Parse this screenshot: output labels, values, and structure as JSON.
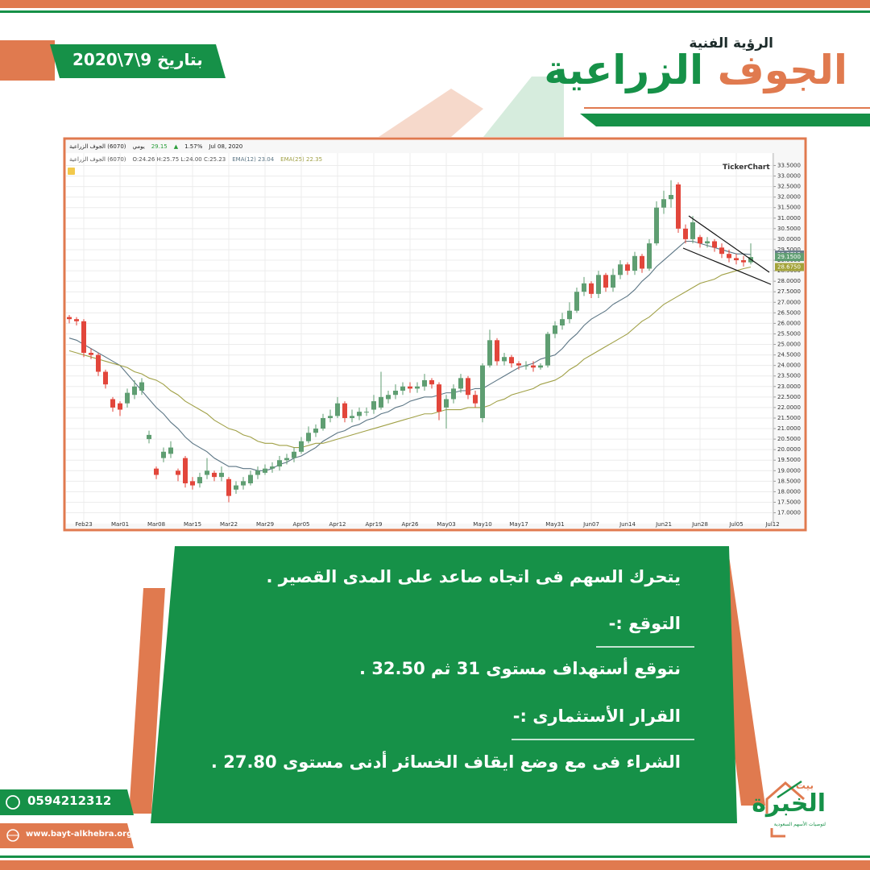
{
  "header": {
    "subtitle": "الرؤية الفنية",
    "title_first": "الجوف",
    "title_second": "الزراعية",
    "date": "بتاريخ 9\\7\\2020"
  },
  "chart_data": {
    "type": "candlestick",
    "symbol": "(6070) الجوف الزراعية",
    "period": "يومي",
    "last_price": "29.15",
    "change": "1.57%",
    "date": "Jul 08, 2020",
    "ohlc_text": "O:24.26 H:25.75 L:24.00 C:25.23",
    "watermark": "TickerChart",
    "categories": [
      null,
      null,
      "Feb23",
      null,
      null,
      null,
      null,
      "Mar01",
      null,
      null,
      null,
      null,
      "Mar08",
      null,
      null,
      null,
      null,
      "Mar15",
      null,
      null,
      null,
      null,
      "Mar22",
      null,
      null,
      null,
      null,
      "Mar29",
      null,
      null,
      null,
      null,
      "Apr05",
      null,
      null,
      null,
      null,
      "Apr12",
      null,
      null,
      null,
      null,
      "Apr19",
      null,
      null,
      null,
      null,
      "Apr26",
      null,
      null,
      null,
      null,
      "May03",
      null,
      null,
      null,
      null,
      "May10",
      null,
      null,
      null,
      null,
      "May17",
      null,
      null,
      null,
      null,
      "May31",
      null,
      null,
      null,
      null,
      "Jun07",
      null,
      null,
      null,
      null,
      "Jun14",
      null,
      null,
      null,
      null,
      "Jun21",
      null,
      null,
      null,
      null,
      "Jun28",
      null,
      null,
      null,
      null,
      "Jul05",
      null,
      null,
      null,
      null,
      "Jul12"
    ],
    "open": [
      26.3,
      26.2,
      26.1,
      24.6,
      24.5,
      23.7,
      22.4,
      22.2,
      22.2,
      22.6,
      22.8,
      20.5,
      19.1,
      19.6,
      19.8,
      19.0,
      19.6,
      18.5,
      18.4,
      18.8,
      18.9,
      18.7,
      18.6,
      18.1,
      18.3,
      18.4,
      18.8,
      18.9,
      19.1,
      19.2,
      19.5,
      19.6,
      19.9,
      20.4,
      20.8,
      21.0,
      21.5,
      21.6,
      22.2,
      21.5,
      21.6,
      21.8,
      21.9,
      22.0,
      22.4,
      22.6,
      22.8,
      23.0,
      22.9,
      23.0,
      23.3,
      23.1,
      22.0,
      22.4,
      22.9,
      23.4,
      22.6,
      21.5,
      24.0,
      25.2,
      24.2,
      24.4,
      24.1,
      24.0,
      24.0,
      23.9,
      24.0,
      25.5,
      25.9,
      26.2,
      26.6,
      27.5,
      27.9,
      27.4,
      28.3,
      27.7,
      28.3,
      28.8,
      28.5,
      29.2,
      28.6,
      29.8,
      31.5,
      31.9,
      32.6,
      30.5,
      30.0,
      30.1,
      29.8,
      29.9,
      29.6,
      29.3,
      29.1,
      29.0,
      28.9,
      null,
      null,
      null
    ],
    "high": [
      26.4,
      26.3,
      26.2,
      24.8,
      24.6,
      23.8,
      22.5,
      22.3,
      22.9,
      23.3,
      23.4,
      20.9,
      19.2,
      20.1,
      20.4,
      19.1,
      19.7,
      18.7,
      18.9,
      19.6,
      19.0,
      19.2,
      18.7,
      18.5,
      18.7,
      19.0,
      19.2,
      19.3,
      19.4,
      19.7,
      19.8,
      20.1,
      20.6,
      21.1,
      21.2,
      21.7,
      21.9,
      22.5,
      22.3,
      21.9,
      22.0,
      22.0,
      22.6,
      23.7,
      22.8,
      23.1,
      23.2,
      23.2,
      23.2,
      23.6,
      23.4,
      23.2,
      22.6,
      23.1,
      23.6,
      23.5,
      22.8,
      24.1,
      25.7,
      25.3,
      24.6,
      24.5,
      24.2,
      24.2,
      24.2,
      24.1,
      25.6,
      26.1,
      26.5,
      27.0,
      27.7,
      28.2,
      28.0,
      28.5,
      28.4,
      28.6,
      29.0,
      28.9,
      29.4,
      29.3,
      30.0,
      31.8,
      32.3,
      32.8,
      32.7,
      30.7,
      31.1,
      30.2,
      30.1,
      30.0,
      29.8,
      29.5,
      29.3,
      29.2,
      29.8,
      null,
      null,
      null
    ],
    "low": [
      26.0,
      25.9,
      24.4,
      24.3,
      23.5,
      22.9,
      21.8,
      21.6,
      22.0,
      22.4,
      22.6,
      20.3,
      18.6,
      19.4,
      19.6,
      18.5,
      18.2,
      18.1,
      18.2,
      18.6,
      18.5,
      18.5,
      17.5,
      17.9,
      18.1,
      18.3,
      18.6,
      18.8,
      18.9,
      19.0,
      19.3,
      19.4,
      19.8,
      20.3,
      20.6,
      20.9,
      21.3,
      21.5,
      21.3,
      21.3,
      21.4,
      21.6,
      21.7,
      21.9,
      22.2,
      22.4,
      22.6,
      22.7,
      22.7,
      22.8,
      22.9,
      21.4,
      21.0,
      22.2,
      22.7,
      22.4,
      22.0,
      21.3,
      23.9,
      24.0,
      24.0,
      23.9,
      23.8,
      23.8,
      23.7,
      23.8,
      23.9,
      25.3,
      25.7,
      26.0,
      26.5,
      27.3,
      27.2,
      27.2,
      27.5,
      27.5,
      28.1,
      28.3,
      28.3,
      28.4,
      28.5,
      29.7,
      31.2,
      31.5,
      30.3,
      29.8,
      29.8,
      29.6,
      29.6,
      29.4,
      29.1,
      28.9,
      28.8,
      28.7,
      28.8,
      null,
      null,
      null
    ],
    "close": [
      26.2,
      26.1,
      24.6,
      24.5,
      23.7,
      23.1,
      22.0,
      21.9,
      22.7,
      23.0,
      23.2,
      20.7,
      18.8,
      19.9,
      20.1,
      18.8,
      18.4,
      18.3,
      18.7,
      19.0,
      18.7,
      18.9,
      17.8,
      18.3,
      18.5,
      18.8,
      19.0,
      19.1,
      19.2,
      19.5,
      19.6,
      19.9,
      20.4,
      20.8,
      21.0,
      21.5,
      21.6,
      22.2,
      21.5,
      21.6,
      21.8,
      21.8,
      22.3,
      22.5,
      22.6,
      22.8,
      23.0,
      22.9,
      23.0,
      23.3,
      23.1,
      21.8,
      22.4,
      22.9,
      23.4,
      22.6,
      22.2,
      24.0,
      25.2,
      24.2,
      24.4,
      24.1,
      24.0,
      24.0,
      23.9,
      24.0,
      25.5,
      25.9,
      26.2,
      26.6,
      27.5,
      27.9,
      27.4,
      28.3,
      27.7,
      28.3,
      28.8,
      28.5,
      29.2,
      28.6,
      29.8,
      31.5,
      31.9,
      32.1,
      30.5,
      30.0,
      30.8,
      29.8,
      29.9,
      29.6,
      29.3,
      29.1,
      29.0,
      28.9,
      29.15,
      null,
      null,
      null
    ],
    "up_color": "#5f9e72",
    "down_color": "#e2463b",
    "series": [
      {
        "name": "EMA(12)",
        "legend_value": "23.04",
        "color": "#5c7685",
        "values": [
          25.3,
          25.2,
          25.0,
          24.8,
          24.6,
          24.4,
          24.2,
          24.0,
          23.6,
          23.2,
          22.8,
          22.4,
          22.0,
          21.7,
          21.3,
          21.0,
          20.6,
          20.3,
          20.1,
          19.9,
          19.6,
          19.4,
          19.2,
          19.2,
          19.1,
          19.1,
          19.0,
          19.0,
          19.1,
          19.3,
          19.4,
          19.6,
          19.7,
          19.9,
          20.1,
          20.4,
          20.6,
          20.8,
          20.9,
          21.1,
          21.2,
          21.4,
          21.5,
          21.7,
          21.8,
          22.0,
          22.1,
          22.3,
          22.4,
          22.5,
          22.5,
          22.6,
          22.7,
          22.7,
          22.8,
          22.8,
          22.9,
          22.9,
          23.1,
          23.3,
          23.5,
          23.7,
          23.9,
          24.0,
          24.1,
          24.3,
          24.4,
          24.5,
          24.8,
          25.2,
          25.5,
          25.9,
          26.2,
          26.4,
          26.6,
          26.9,
          27.1,
          27.3,
          27.6,
          28.0,
          28.3,
          28.7,
          29.0,
          29.3,
          29.6,
          29.9,
          29.9,
          29.8,
          29.7,
          29.6,
          29.5,
          29.4,
          29.3,
          29.3,
          29.2713,
          null,
          null,
          null
        ]
      },
      {
        "name": "EMA(25)",
        "legend_value": "22.35",
        "color": "#a0a046",
        "values": [
          24.7,
          24.6,
          24.5,
          24.4,
          24.3,
          24.2,
          24.1,
          24.0,
          23.9,
          23.7,
          23.6,
          23.4,
          23.3,
          23.1,
          22.8,
          22.6,
          22.3,
          22.1,
          21.9,
          21.7,
          21.4,
          21.2,
          21.0,
          20.9,
          20.7,
          20.6,
          20.4,
          20.3,
          20.3,
          20.2,
          20.2,
          20.1,
          20.1,
          20.2,
          20.3,
          20.3,
          20.4,
          20.5,
          20.6,
          20.7,
          20.8,
          20.9,
          21.0,
          21.1,
          21.2,
          21.3,
          21.4,
          21.5,
          21.6,
          21.7,
          21.7,
          21.8,
          21.9,
          21.9,
          21.9,
          22.0,
          22.0,
          22.0,
          22.1,
          22.3,
          22.4,
          22.6,
          22.7,
          22.8,
          22.9,
          23.1,
          23.2,
          23.3,
          23.5,
          23.8,
          24.0,
          24.3,
          24.5,
          24.7,
          24.9,
          25.1,
          25.3,
          25.5,
          25.8,
          26.1,
          26.3,
          26.6,
          26.9,
          27.1,
          27.3,
          27.5,
          27.7,
          27.9,
          28.0,
          28.1,
          28.3,
          28.4,
          28.5,
          28.6,
          28.675,
          null,
          null,
          null
        ]
      }
    ],
    "last_labels": [
      {
        "value": 29.2713,
        "label": "29.2713",
        "color": "#6b7f8b"
      },
      {
        "value": 29.15,
        "label": "29.1500",
        "color": "#5f9e72"
      },
      {
        "value": 28.675,
        "label": "28.6750",
        "color": "#a3a33a"
      }
    ],
    "ylim": [
      16.6,
      33.9
    ],
    "yticks": [
      {
        "value": 17,
        "label": "17.0000"
      },
      {
        "value": 17.5,
        "label": "17.5000"
      },
      {
        "value": 18,
        "label": "18.0000"
      },
      {
        "value": 18.5,
        "label": "18.5000"
      },
      {
        "value": 19,
        "label": "19.0000"
      },
      {
        "value": 19.5,
        "label": "19.5000"
      },
      {
        "value": 20,
        "label": "20.0000"
      },
      {
        "value": 20.5,
        "label": "20.5000"
      },
      {
        "value": 21,
        "label": "21.0000"
      },
      {
        "value": 21.5,
        "label": "21.5000"
      },
      {
        "value": 22,
        "label": "22.0000"
      },
      {
        "value": 22.5,
        "label": "22.5000"
      },
      {
        "value": 23,
        "label": "23.0000"
      },
      {
        "value": 23.5,
        "label": "23.5000"
      },
      {
        "value": 24,
        "label": "24.0000"
      },
      {
        "value": 24.5,
        "label": "24.5000"
      },
      {
        "value": 25,
        "label": "25.0000"
      },
      {
        "value": 25.5,
        "label": "25.5000"
      },
      {
        "value": 26,
        "label": "26.0000"
      },
      {
        "value": 26.5,
        "label": "26.5000"
      },
      {
        "value": 27,
        "label": "27.0000"
      },
      {
        "value": 27.5,
        "label": "27.5000"
      },
      {
        "value": 28,
        "label": "28.0000"
      },
      {
        "value": 28.5,
        "label": "28.5000"
      },
      {
        "value": 29,
        "label": "29.0000"
      },
      {
        "value": 29.5,
        "label": "29.5000"
      },
      {
        "value": 30,
        "label": "30.0000"
      },
      {
        "value": 30.5,
        "label": "30.5000"
      },
      {
        "value": 31,
        "label": "31.0000"
      },
      {
        "value": 31.5,
        "label": "31.5000"
      },
      {
        "value": 32,
        "label": "32.0000"
      },
      {
        "value": 32.5,
        "label": "32.5000"
      },
      {
        "value": 33,
        "label": "33.0000"
      },
      {
        "value": 33.5,
        "label": "33.5000"
      }
    ],
    "grid": true
  },
  "analysis": {
    "trend": "يتحرك السهم فى اتجاه صاعد  على المدى القصير .",
    "forecast_heading": "التوقع :-",
    "forecast": "نتوقع أستهداف مستوى 31 ثم 32.50 .",
    "decision_heading": "القرار الأستثمارى :-",
    "decision": "الشراء فى  مع وضع ايقاف  الخسائر أدنى مستوى 27.80 ."
  },
  "contact": {
    "phone": "0594212312",
    "website": "www.bayt-alkhebra.org"
  },
  "logo": {
    "top": "بيت",
    "name": "الخبرة",
    "tagline": "لتوصيات الأسهم السعودية"
  }
}
